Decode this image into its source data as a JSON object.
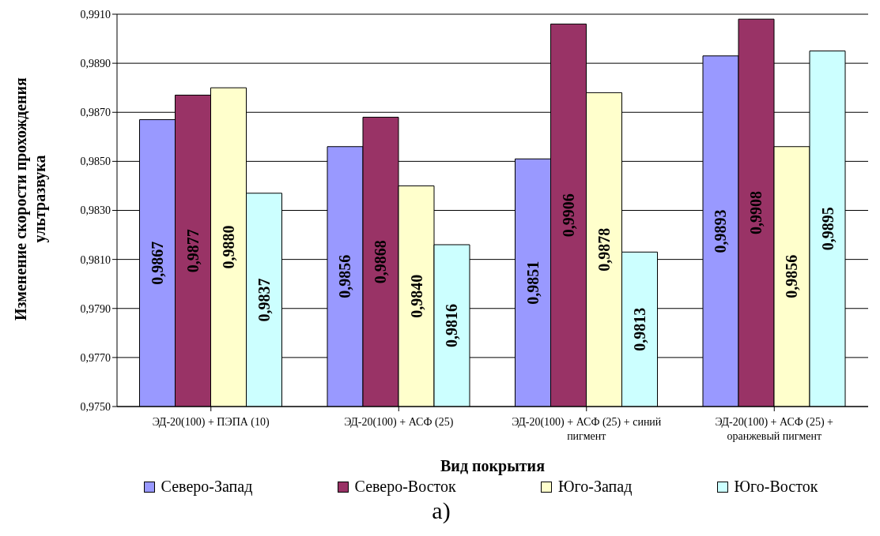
{
  "chart_data": {
    "type": "bar",
    "xlabel": "Вид покрытия",
    "ylabel": "Изменение скорости прохождения ультразвука",
    "categories": [
      "ЭД-20(100) + ПЭПА (10)",
      "ЭД-20(100) + АСФ (25)",
      "ЭД-20(100) + АСФ (25) + синий пигмент",
      "ЭД-20(100) + АСФ (25) + оранжевый пигмент"
    ],
    "series": [
      {
        "name": "Северо-Запад",
        "color": "#9999ff",
        "values": [
          0.9867,
          0.9856,
          0.9851,
          0.9893
        ],
        "value_labels": [
          "0,9867",
          "0,9856",
          "0,9851",
          "0,9893"
        ]
      },
      {
        "name": "Северо-Восток",
        "color": "#993366",
        "values": [
          0.9877,
          0.9868,
          0.9906,
          0.9908
        ],
        "value_labels": [
          "0,9877",
          "0,9868",
          "0,9906",
          "0,9908"
        ]
      },
      {
        "name": "Юго-Запад",
        "color": "#ffffcc",
        "values": [
          0.988,
          0.984,
          0.9878,
          0.9856
        ],
        "value_labels": [
          "0,9880",
          "0,9840",
          "0,9878",
          "0,9856"
        ]
      },
      {
        "name": "Юго-Восток",
        "color": "#ccffff",
        "values": [
          0.9837,
          0.9816,
          0.9813,
          0.9895
        ],
        "value_labels": [
          "0,9837",
          "0,9816",
          "0,9813",
          "0,9895"
        ]
      }
    ],
    "ylim": [
      0.975,
      0.991
    ],
    "yticks": [
      {
        "value": 0.975,
        "label": "0,9750"
      },
      {
        "value": 0.977,
        "label": "0,9770"
      },
      {
        "value": 0.979,
        "label": "0,9790"
      },
      {
        "value": 0.981,
        "label": "0,9810"
      },
      {
        "value": 0.983,
        "label": "0,9830"
      },
      {
        "value": 0.985,
        "label": "0,9850"
      },
      {
        "value": 0.987,
        "label": "0,9870"
      },
      {
        "value": 0.989,
        "label": "0,9890"
      },
      {
        "value": 0.991,
        "label": "0,9910"
      }
    ],
    "grid": "y",
    "legend": "bottom",
    "annotations": [
      "а)"
    ]
  }
}
